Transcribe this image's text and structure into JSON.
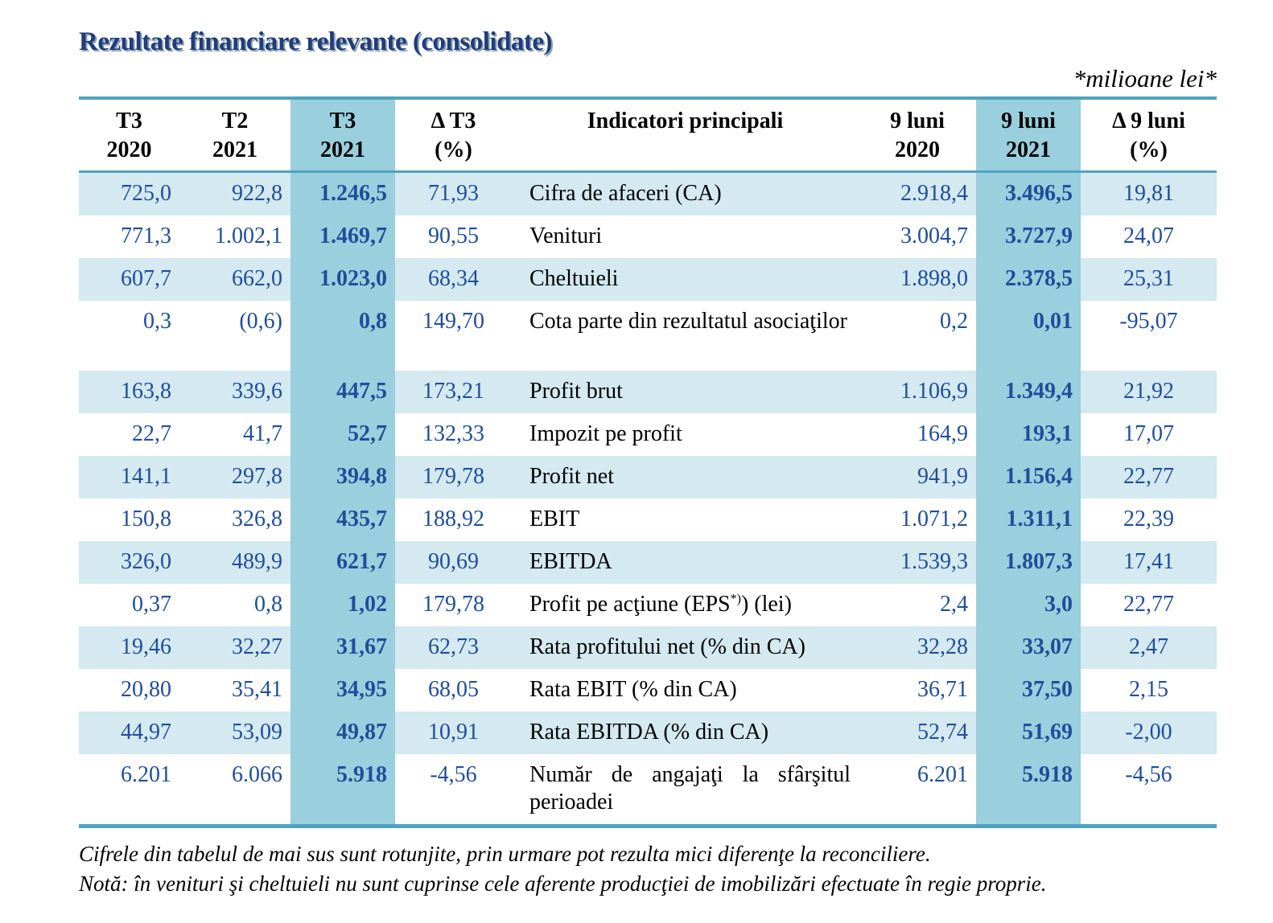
{
  "title": "Rezultate financiare relevante (consolidate)",
  "unit": "*milioane lei*",
  "columns": [
    {
      "line1": "T3",
      "line2": "2020"
    },
    {
      "line1": "T2",
      "line2": "2021"
    },
    {
      "line1": "T3",
      "line2": "2021"
    },
    {
      "line1": "Δ T3",
      "line2": "(%)"
    },
    {
      "line1": "Indicatori principali",
      "line2": ""
    },
    {
      "line1": "9 luni",
      "line2": "2020"
    },
    {
      "line1": "9 luni",
      "line2": "2021"
    },
    {
      "line1": "Δ 9 luni",
      "line2": "(%)"
    }
  ],
  "rows": [
    {
      "t3_2020": "725,0",
      "t2_2021": "922,8",
      "t3_2021": "1.246,5",
      "d_t3": "71,93",
      "indicator": "Cifra de afaceri (CA)",
      "m9_2020": "2.918,4",
      "m9_2021": "3.496,5",
      "d_9": "19,81"
    },
    {
      "t3_2020": "771,3",
      "t2_2021": "1.002,1",
      "t3_2021": "1.469,7",
      "d_t3": "90,55",
      "indicator": "Venituri",
      "m9_2020": "3.004,7",
      "m9_2021": "3.727,9",
      "d_9": "24,07"
    },
    {
      "t3_2020": "607,7",
      "t2_2021": "662,0",
      "t3_2021": "1.023,0",
      "d_t3": "68,34",
      "indicator": "Cheltuieli",
      "m9_2020": "1.898,0",
      "m9_2021": "2.378,5",
      "d_9": "25,31"
    },
    {
      "t3_2020": "0,3",
      "t2_2021": "(0,6)",
      "t3_2021": "0,8",
      "d_t3": "149,70",
      "indicator": "Cota parte din rezultatul asociaţilor",
      "m9_2020": "0,2",
      "m9_2021": "0,01",
      "d_9": "-95,07"
    },
    {
      "t3_2020": "163,8",
      "t2_2021": "339,6",
      "t3_2021": "447,5",
      "d_t3": "173,21",
      "indicator": "Profit brut",
      "m9_2020": "1.106,9",
      "m9_2021": "1.349,4",
      "d_9": "21,92"
    },
    {
      "t3_2020": "22,7",
      "t2_2021": "41,7",
      "t3_2021": "52,7",
      "d_t3": "132,33",
      "indicator": "Impozit pe profit",
      "m9_2020": "164,9",
      "m9_2021": "193,1",
      "d_9": "17,07"
    },
    {
      "t3_2020": "141,1",
      "t2_2021": "297,8",
      "t3_2021": "394,8",
      "d_t3": "179,78",
      "indicator": "Profit net",
      "m9_2020": "941,9",
      "m9_2021": "1.156,4",
      "d_9": "22,77"
    },
    {
      "t3_2020": "150,8",
      "t2_2021": "326,8",
      "t3_2021": "435,7",
      "d_t3": "188,92",
      "indicator": "EBIT",
      "m9_2020": "1.071,2",
      "m9_2021": "1.311,1",
      "d_9": "22,39"
    },
    {
      "t3_2020": "326,0",
      "t2_2021": "489,9",
      "t3_2021": "621,7",
      "d_t3": "90,69",
      "indicator": "EBITDA",
      "m9_2020": "1.539,3",
      "m9_2021": "1.807,3",
      "d_9": "17,41"
    },
    {
      "t3_2020": "0,37",
      "t2_2021": "0,8",
      "t3_2021": "1,02",
      "d_t3": "179,78",
      "indicator": "Profit pe acţiune (EPS",
      "indicator_sup": "*)",
      "indicator_tail": ") (lei)",
      "m9_2020": "2,4",
      "m9_2021": "3,0",
      "d_9": "22,77"
    },
    {
      "t3_2020": "19,46",
      "t2_2021": "32,27",
      "t3_2021": "31,67",
      "d_t3": "62,73",
      "indicator": "Rata profitului net (% din CA)",
      "m9_2020": "32,28",
      "m9_2021": "33,07",
      "d_9": "2,47"
    },
    {
      "t3_2020": "20,80",
      "t2_2021": "35,41",
      "t3_2021": "34,95",
      "d_t3": "68,05",
      "indicator": "Rata EBIT (% din CA)",
      "m9_2020": "36,71",
      "m9_2021": "37,50",
      "d_9": "2,15"
    },
    {
      "t3_2020": "44,97",
      "t2_2021": "53,09",
      "t3_2021": "49,87",
      "d_t3": "10,91",
      "indicator": "Rata EBITDA (% din CA)",
      "m9_2020": "52,74",
      "m9_2021": "51,69",
      "d_9": "-2,00"
    },
    {
      "t3_2020": "6.201",
      "t2_2021": "6.066",
      "t3_2021": "5.918",
      "d_t3": "-4,56",
      "indicator": "Număr de angajaţi la sfârşitul perioadei",
      "m9_2020": "6.201",
      "m9_2021": "5.918",
      "d_9": "-4,56"
    }
  ],
  "notes": [
    "Cifrele din tabelul de mai sus sunt rotunjite, prin urmare pot rezulta mici diferenţe la reconciliere.",
    "Notă: în venituri şi cheltuieli nu sunt cuprinse cele aferente producţiei de imobilizări efectuate în regie proprie."
  ]
}
